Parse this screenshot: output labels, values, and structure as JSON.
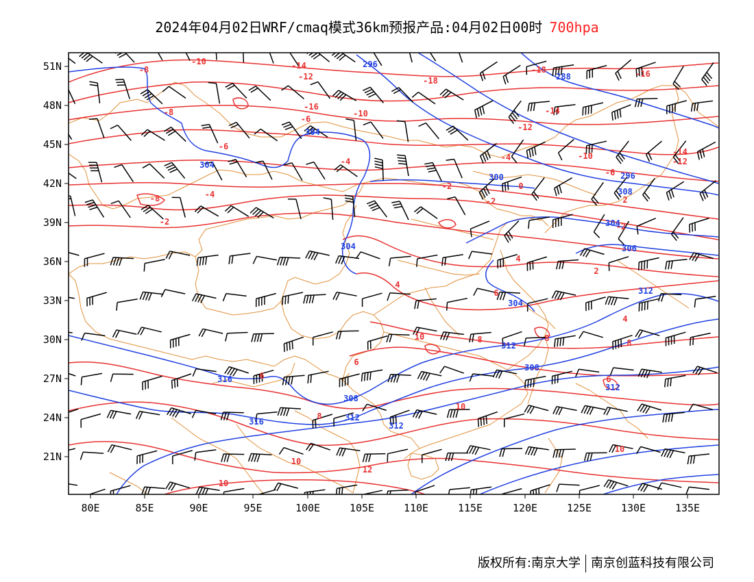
{
  "title": {
    "main": "2024年04月02日WRF/cmaq模式36km预报产品:04月02日00时",
    "level": "700hpa",
    "level_color": "#ff2020"
  },
  "map": {
    "lon_range": [
      78,
      138
    ],
    "lat_range": [
      18,
      52
    ],
    "lon_ticks": [
      "80E",
      "85E",
      "90E",
      "95E",
      "100E",
      "105E",
      "110E",
      "115E",
      "120E",
      "125E",
      "130E",
      "135E"
    ],
    "lat_ticks": [
      "51N",
      "48N",
      "45N",
      "42N",
      "39N",
      "36N",
      "33N",
      "30N",
      "27N",
      "24N",
      "21N"
    ],
    "colors": {
      "temperature_contours": "#e83030",
      "height_contours": "#2040e0",
      "borders": "#e0903a",
      "wind_barbs": "#000000",
      "frame": "#000000"
    },
    "height_labels": [
      "296",
      "288",
      "304",
      "304",
      "300",
      "296",
      "308",
      "304",
      "304",
      "306",
      "312",
      "304",
      "312",
      "308",
      "312",
      "316",
      "308",
      "312",
      "316",
      "312"
    ],
    "temperature_labels": [
      "-8",
      "-10",
      "-14",
      "-12",
      "-18",
      "-16",
      "-18",
      "-8",
      "-6",
      "-10",
      "-14",
      "-12",
      "-4",
      "-4",
      "-16",
      "-14",
      "-12",
      "-10",
      "-6",
      "-2",
      "-2",
      "-4",
      "-8",
      "-6",
      "0",
      "-2",
      "2",
      "-2",
      "4",
      "2",
      "4",
      "6",
      "10",
      "8",
      "4",
      "8",
      "6",
      "6",
      "6",
      "8",
      "8",
      "10",
      "10",
      "12",
      "10",
      "10",
      "6"
    ],
    "icon": "wind-barb-icon"
  },
  "footer": {
    "left": "版权所有:南京大学",
    "right": "南京创蓝科技有限公司"
  }
}
